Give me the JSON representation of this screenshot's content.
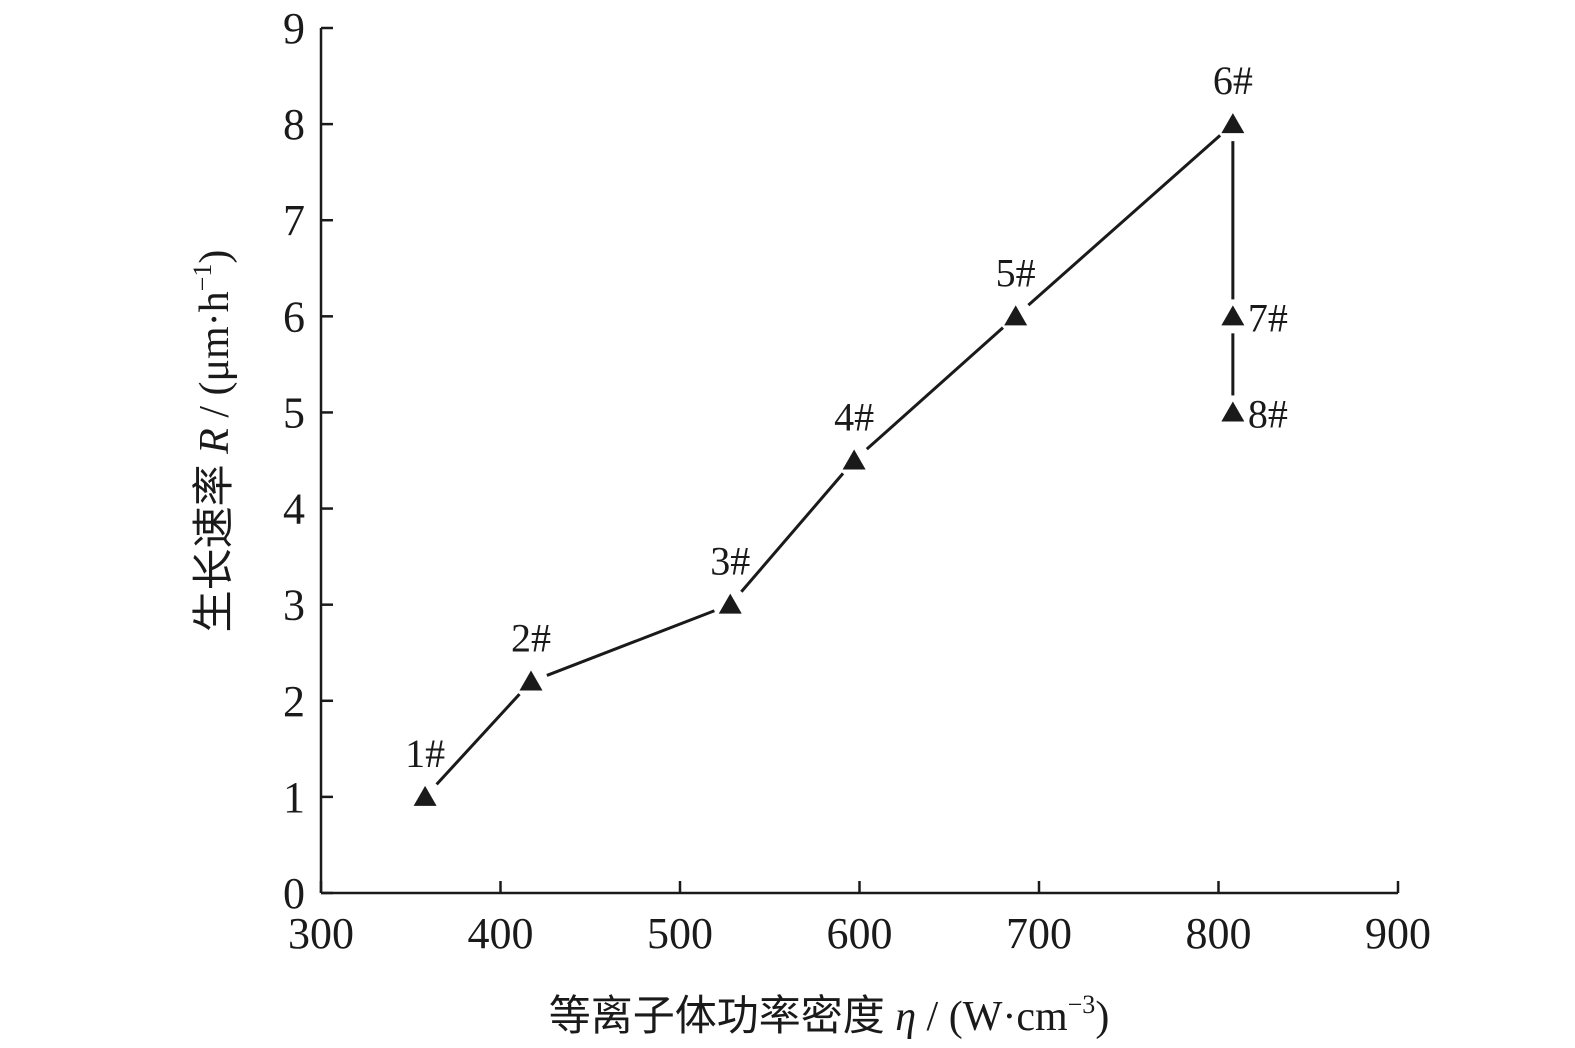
{
  "chart_data": {
    "type": "line",
    "xlabel": {
      "prefix": "等离子体功率密度 ",
      "symbol": "η",
      "unit_open": " / (W·cm",
      "unit_sup": "−3",
      "unit_close": ")"
    },
    "ylabel": {
      "prefix": "生长速率 ",
      "symbol": "R",
      "unit_open": " / (μm·h",
      "unit_sup": "−1",
      "unit_close": ")"
    },
    "xlim": [
      300,
      900
    ],
    "ylim": [
      0,
      9
    ],
    "xticks": [
      300,
      400,
      500,
      600,
      700,
      800,
      900
    ],
    "yticks": [
      0,
      1,
      2,
      3,
      4,
      5,
      6,
      7,
      8,
      9
    ],
    "grid": false,
    "marker": "triangle",
    "color": "#1a1a1a",
    "points": [
      {
        "label": "1#",
        "x": 358,
        "y": 1.0
      },
      {
        "label": "2#",
        "x": 417,
        "y": 2.2
      },
      {
        "label": "3#",
        "x": 528,
        "y": 3.0
      },
      {
        "label": "4#",
        "x": 597,
        "y": 4.5
      },
      {
        "label": "5#",
        "x": 687,
        "y": 6.0
      },
      {
        "label": "6#",
        "x": 808,
        "y": 8.0
      },
      {
        "label": "7#",
        "x": 808,
        "y": 6.0
      },
      {
        "label": "8#",
        "x": 808,
        "y": 5.0
      }
    ],
    "segments": [
      [
        0,
        1
      ],
      [
        1,
        2
      ],
      [
        2,
        3
      ],
      [
        3,
        4
      ],
      [
        4,
        5
      ],
      [
        5,
        6
      ],
      [
        6,
        7
      ]
    ]
  }
}
